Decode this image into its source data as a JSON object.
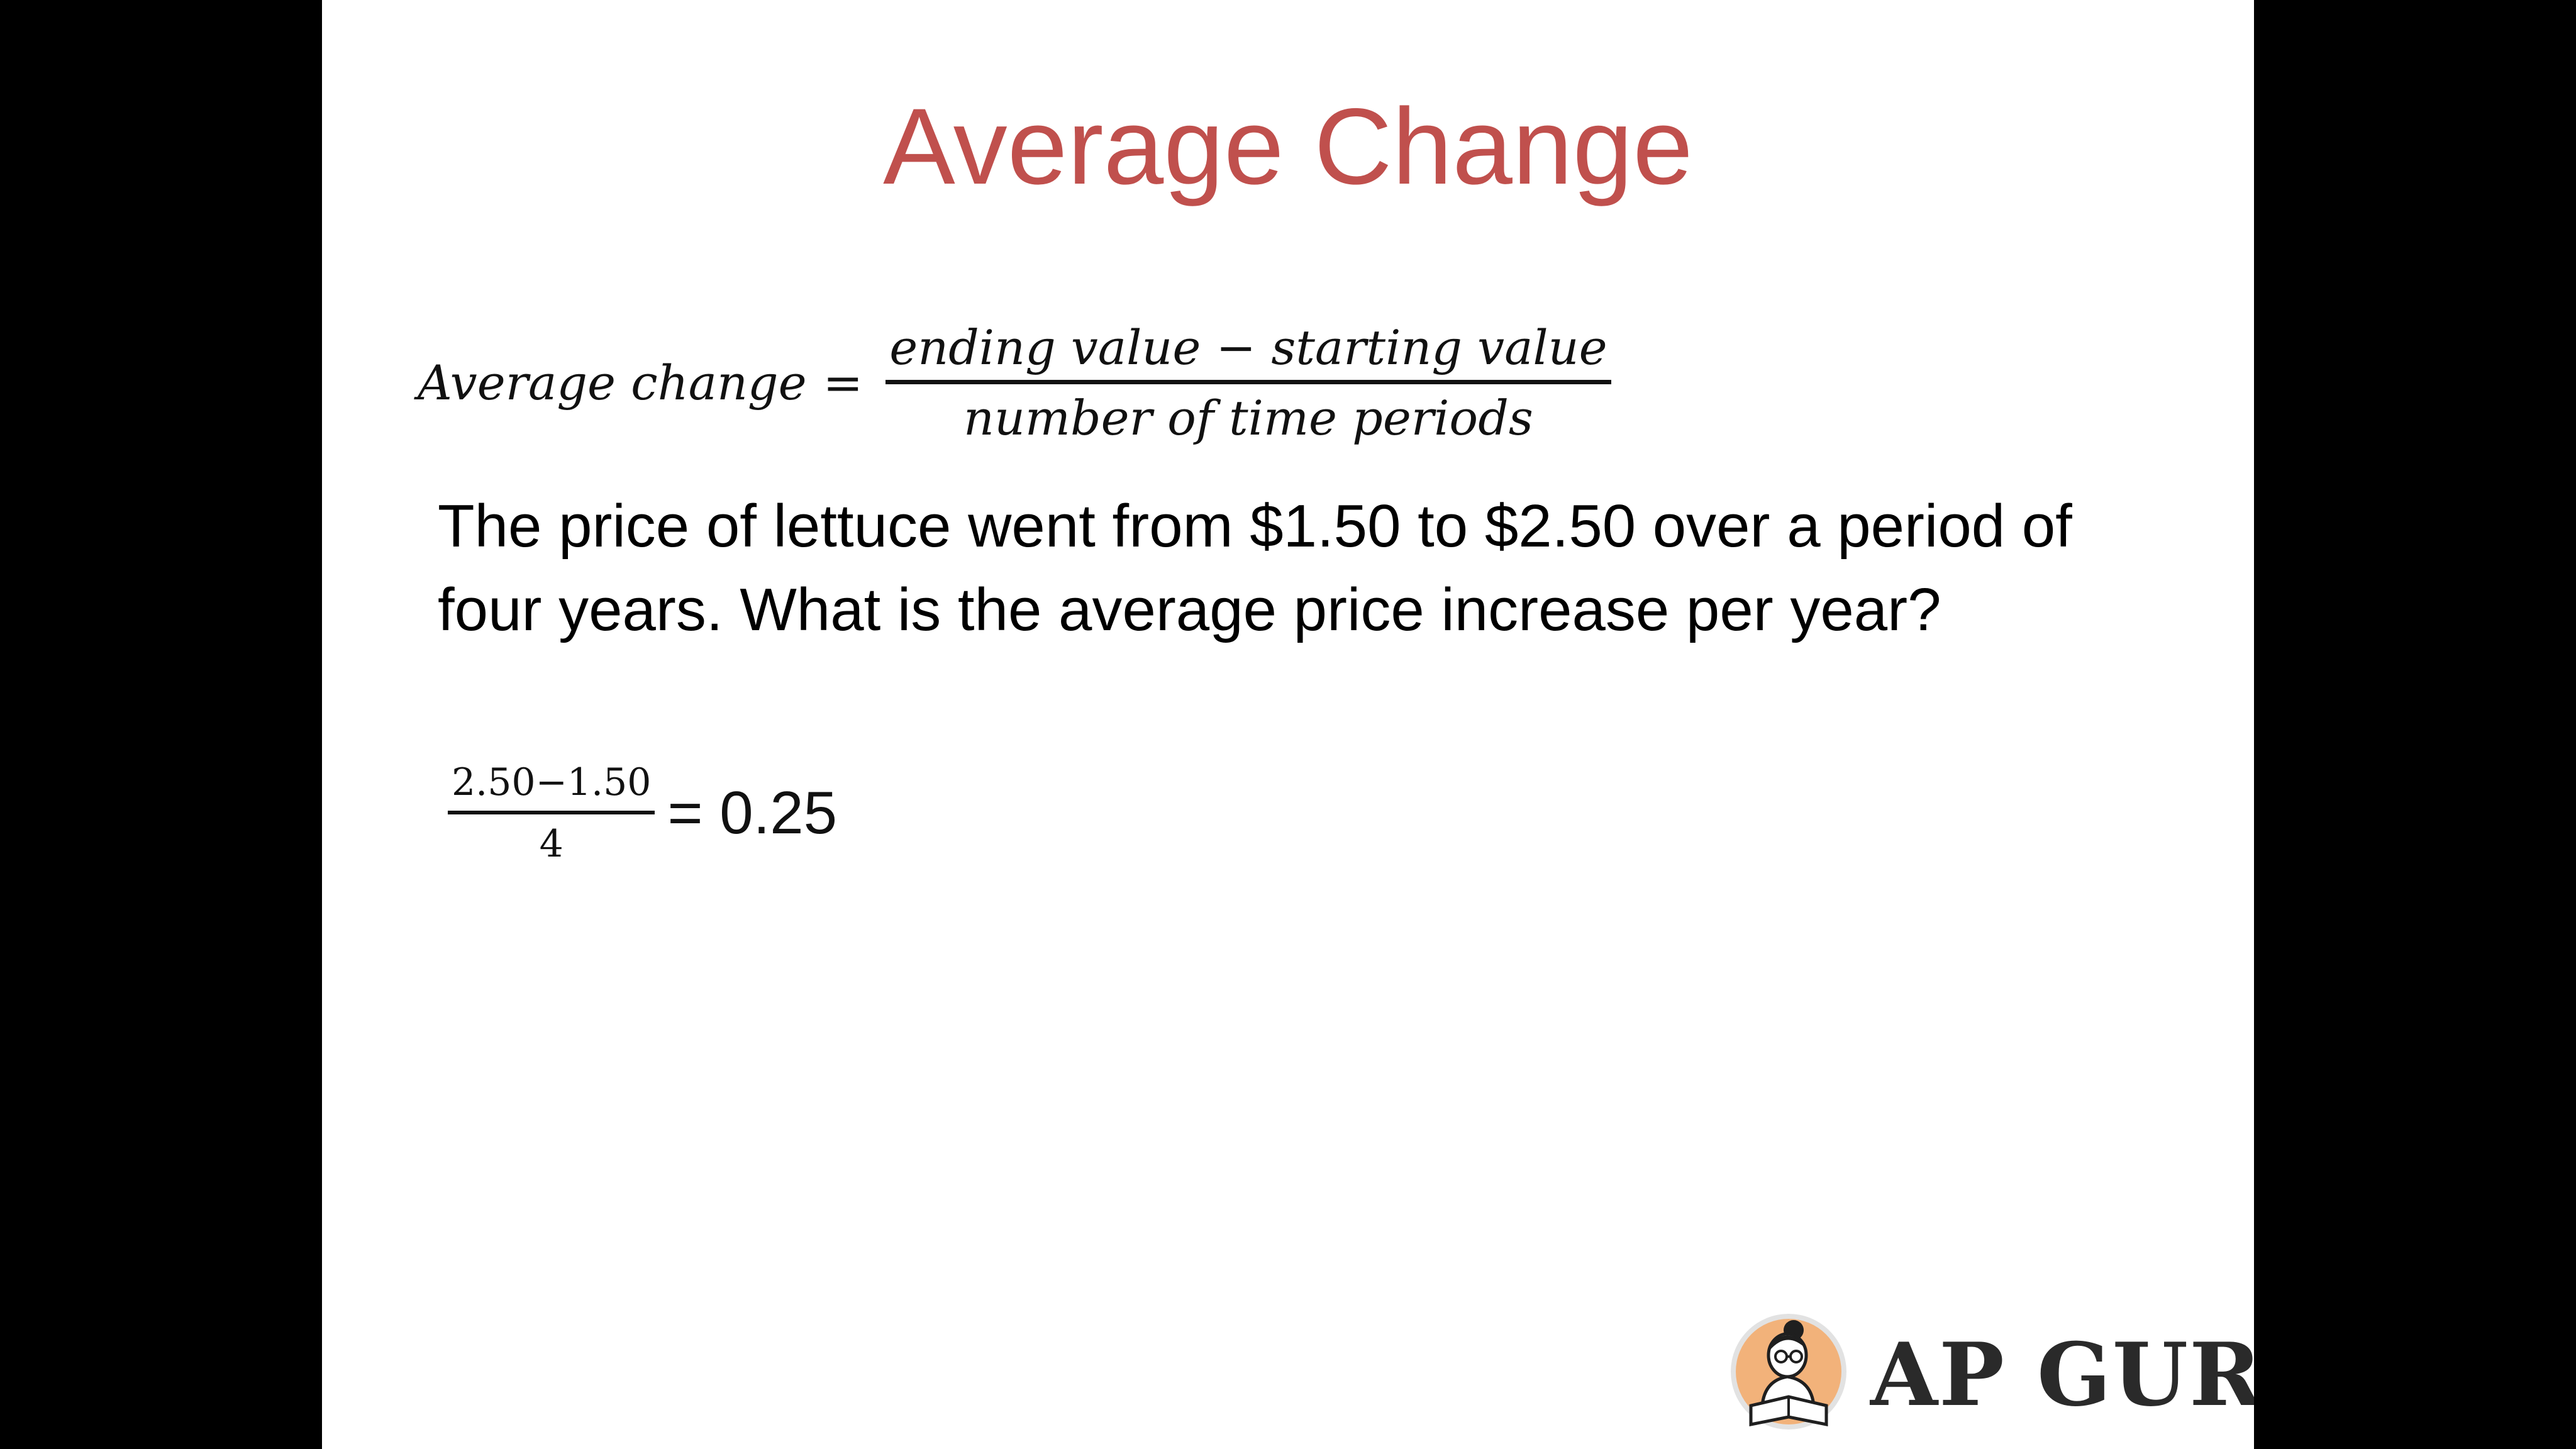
{
  "slide": {
    "title": "Average Change",
    "formula": {
      "lhs": "Average change",
      "equals": "=",
      "numerator": "ending value − starting value",
      "denominator": "number of time periods"
    },
    "problem_text": "The price of lettuce went from $1.50 to $2.50 over a period of four years. What is the average price increase per year?",
    "calculation": {
      "numerator": "2.50−1.50",
      "denominator": "4",
      "result": "= 0.25"
    },
    "logo": {
      "text": "AP GURU",
      "icon": "reading-person-emblem-icon"
    },
    "colors": {
      "title": "#c0504d",
      "background": "#ffffff",
      "letterbox": "#000000",
      "logo_circle": "#f2b27a"
    }
  }
}
